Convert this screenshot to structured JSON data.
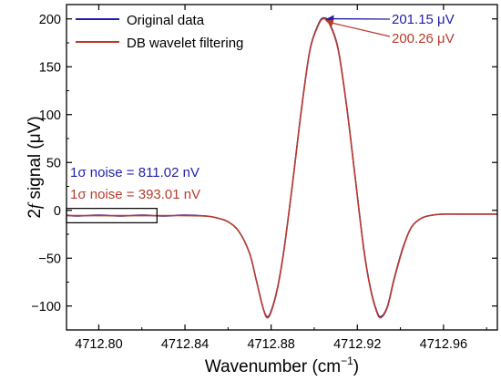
{
  "chart_data": {
    "type": "line",
    "xlabel": "Wavenumber (cm",
    "xlabel_sup": "−1",
    "xlabel_end": ")",
    "ylabel_prefix": "2",
    "ylabel_italic": "f",
    "ylabel_rest": " signal (μV)",
    "xlim": [
      4712.785,
      4712.985
    ],
    "ylim": [
      -125,
      215
    ],
    "xticks": [
      4712.8,
      4712.84,
      4712.88,
      4712.92,
      4712.96
    ],
    "xtick_labels": [
      "4712.80",
      "4712.84",
      "4712.88",
      "4712.92",
      "4712.96"
    ],
    "yticks": [
      -100,
      -50,
      0,
      50,
      100,
      150,
      200
    ],
    "ytick_labels": [
      "−100",
      "−50",
      "0",
      "50",
      "100",
      "150",
      "200"
    ],
    "legend_position": "top-left",
    "colors": {
      "original": "#1f1fa8",
      "filtered": "#b83a2c",
      "axis": "#000000"
    },
    "series": [
      {
        "name": "Original data",
        "color": "#1f1fa8",
        "x": [
          4712.785,
          4712.79,
          4712.8,
          4712.81,
          4712.82,
          4712.83,
          4712.84,
          4712.85,
          4712.855,
          4712.86,
          4712.865,
          4712.87,
          4712.873,
          4712.876,
          4712.878,
          4712.88,
          4712.883,
          4712.886,
          4712.89,
          4712.894,
          4712.898,
          4712.902,
          4712.9045,
          4712.907,
          4712.911,
          4712.915,
          4712.919,
          4712.923,
          4712.926,
          4712.929,
          4712.931,
          4712.934,
          4712.937,
          4712.941,
          4712.945,
          4712.95,
          4712.955,
          4712.96,
          4712.97,
          4712.985
        ],
        "y": [
          -5,
          -6,
          -5,
          -6,
          -5,
          -6,
          -5,
          -6,
          -8,
          -12,
          -22,
          -45,
          -72,
          -100,
          -111,
          -105,
          -80,
          -40,
          30,
          105,
          168,
          195,
          201.15,
          196,
          170,
          110,
          35,
          -40,
          -80,
          -105,
          -111,
          -100,
          -72,
          -40,
          -18,
          -8,
          -5,
          -4,
          -4,
          -4
        ]
      },
      {
        "name": "DB wavelet filtering",
        "color": "#b83a2c",
        "x": [
          4712.785,
          4712.79,
          4712.8,
          4712.81,
          4712.82,
          4712.83,
          4712.84,
          4712.85,
          4712.855,
          4712.86,
          4712.865,
          4712.87,
          4712.873,
          4712.876,
          4712.878,
          4712.88,
          4712.883,
          4712.886,
          4712.89,
          4712.894,
          4712.898,
          4712.902,
          4712.9045,
          4712.907,
          4712.911,
          4712.915,
          4712.919,
          4712.923,
          4712.926,
          4712.929,
          4712.931,
          4712.934,
          4712.937,
          4712.941,
          4712.945,
          4712.95,
          4712.955,
          4712.96,
          4712.97,
          4712.985
        ],
        "y": [
          -5.5,
          -5.5,
          -5.5,
          -5.5,
          -5.5,
          -5.5,
          -5.5,
          -6,
          -8,
          -12,
          -22,
          -45,
          -72,
          -100,
          -112,
          -106,
          -81,
          -41,
          29,
          104,
          167,
          194,
          200.26,
          195,
          169,
          109,
          34,
          -41,
          -81,
          -106,
          -112,
          -101,
          -73,
          -41,
          -18,
          -8,
          -5,
          -4,
          -4,
          -4
        ]
      }
    ],
    "annotations": {
      "peak_original": {
        "text": "201.15 μV",
        "x": 4712.9045,
        "y": 201.15,
        "color": "#1f1fa8"
      },
      "peak_filtered": {
        "text": "200.26 μV",
        "x": 4712.9045,
        "y": 200.26,
        "color": "#b83a2c"
      },
      "noise_original": {
        "text": "1σ noise = 811.02 nV",
        "color": "#1f1fa8"
      },
      "noise_filtered": {
        "text": "1σ noise = 393.01 nV",
        "color": "#b83a2c"
      },
      "noise_box": {
        "x": [
          4712.785,
          4712.827
        ],
        "y": [
          -13,
          2
        ]
      }
    }
  }
}
